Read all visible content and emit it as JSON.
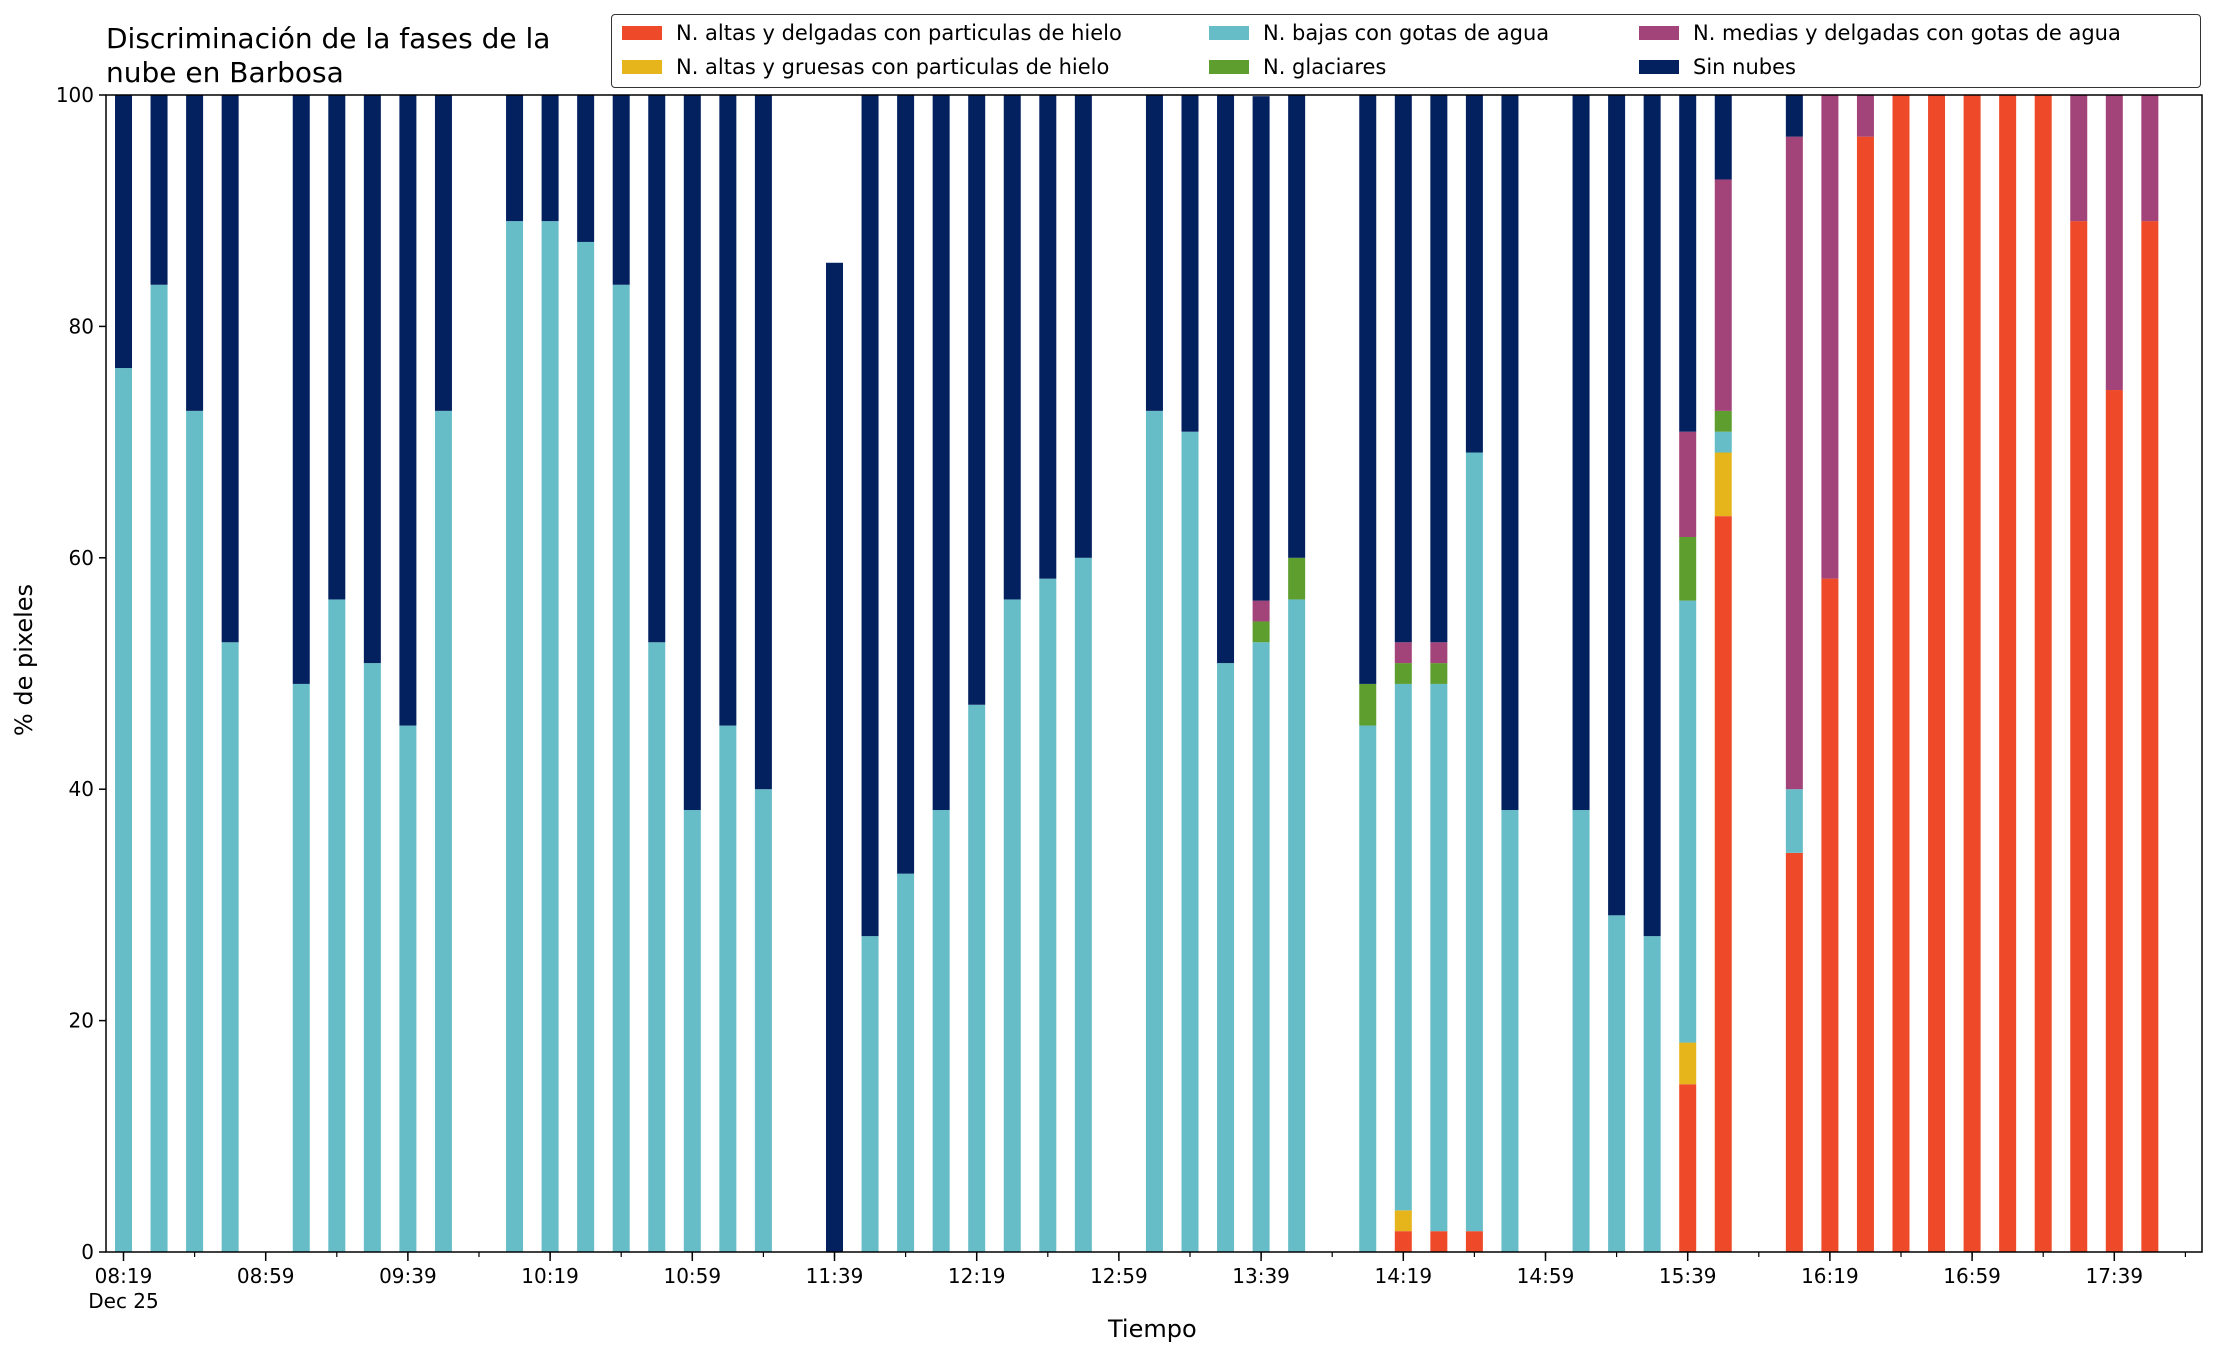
{
  "chart_data": {
    "type": "bar",
    "stacked": true,
    "title": "Discriminación de la fases de la\nnube en Barbosa",
    "xlabel": "Tiempo",
    "ylabel": "% de pixeles",
    "ylim": [
      0,
      100
    ],
    "yticks": [
      0,
      20,
      40,
      60,
      80,
      100
    ],
    "grid": false,
    "legend_position": "top-right",
    "xtick_labels": [
      "08:19",
      "08:59",
      "09:39",
      "10:19",
      "10:59",
      "11:39",
      "12:19",
      "12:59",
      "13:39",
      "14:19",
      "14:59",
      "15:39",
      "16:19",
      "16:59",
      "17:39"
    ],
    "xtick_sublabel": "Dec 25",
    "categories": [
      "08:19",
      "08:29",
      "08:39",
      "08:49",
      "08:59",
      "09:09",
      "09:19",
      "09:29",
      "09:39",
      "09:49",
      "09:59",
      "10:09",
      "10:19",
      "10:29",
      "10:39",
      "10:49",
      "10:59",
      "11:09",
      "11:19",
      "11:29",
      "11:39",
      "11:49",
      "11:59",
      "12:09",
      "12:19",
      "12:29",
      "12:39",
      "12:49",
      "12:59",
      "13:09",
      "13:19",
      "13:29",
      "13:39",
      "13:49",
      "13:59",
      "14:09",
      "14:19",
      "14:29",
      "14:39",
      "14:49",
      "14:59",
      "15:09",
      "15:19",
      "15:29",
      "15:39",
      "15:49",
      "15:59",
      "16:09",
      "16:19",
      "16:29",
      "16:39",
      "16:49",
      "16:59",
      "17:09",
      "17:19",
      "17:29",
      "17:39",
      "17:49"
    ],
    "series": [
      {
        "name": "N. altas y delgadas con particulas de hielo",
        "color": "#EE4A2A",
        "values": [
          0,
          0,
          0,
          0,
          null,
          0,
          0,
          0,
          0,
          0,
          null,
          0,
          0,
          0,
          0,
          0,
          0,
          0,
          0,
          null,
          0,
          0,
          0,
          0,
          0,
          0,
          0,
          0,
          null,
          0,
          0,
          0,
          0,
          0,
          null,
          0,
          1.8,
          1.8,
          1.8,
          0,
          null,
          0,
          0,
          0,
          14.5,
          63.6,
          null,
          34.5,
          58.2,
          96.4,
          100,
          100,
          100,
          100,
          100,
          89.1,
          74.5,
          89.1
        ]
      },
      {
        "name": "N. altas y gruesas con particulas de hielo",
        "color": "#E5B51B",
        "values": [
          0,
          0,
          0,
          0,
          null,
          0,
          0,
          0,
          0,
          0,
          null,
          0,
          0,
          0,
          0,
          0,
          0,
          0,
          0,
          null,
          0,
          0,
          0,
          0,
          0,
          0,
          0,
          0,
          null,
          0,
          0,
          0,
          0,
          0,
          null,
          0,
          1.8,
          0,
          0,
          0,
          null,
          0,
          0,
          0,
          3.6,
          5.5,
          null,
          0,
          0,
          0,
          0,
          0,
          0,
          0,
          0,
          0,
          0,
          0
        ]
      },
      {
        "name": "N. bajas con gotas de agua",
        "color": "#66BDC8",
        "values": [
          76.4,
          83.6,
          72.7,
          52.7,
          null,
          49.1,
          56.4,
          50.9,
          45.5,
          72.7,
          null,
          89.1,
          89.1,
          87.3,
          83.6,
          52.7,
          38.2,
          45.5,
          40.0,
          null,
          0,
          27.3,
          32.7,
          38.2,
          47.3,
          56.4,
          58.2,
          60.0,
          null,
          72.7,
          70.9,
          50.9,
          52.7,
          56.4,
          null,
          45.5,
          45.5,
          47.3,
          67.3,
          38.2,
          null,
          38.2,
          29.1,
          27.3,
          38.2,
          1.8,
          null,
          5.5,
          0,
          0,
          0,
          0,
          0,
          0,
          0,
          0,
          0,
          0
        ]
      },
      {
        "name": "N. glaciares",
        "color": "#5E9E2F",
        "values": [
          0,
          0,
          0,
          0,
          null,
          0,
          0,
          0,
          0,
          0,
          null,
          0,
          0,
          0,
          0,
          0,
          0,
          0,
          0,
          null,
          0,
          0,
          0,
          0,
          0,
          0,
          0,
          0,
          null,
          0,
          0,
          0,
          1.8,
          3.6,
          null,
          3.6,
          1.8,
          1.8,
          0,
          0,
          null,
          0,
          0,
          0,
          5.5,
          1.8,
          null,
          0,
          0,
          0,
          0,
          0,
          0,
          0,
          0,
          0,
          0,
          0
        ]
      },
      {
        "name": "N. medias y delgadas con gotas de agua",
        "color": "#A2437A",
        "values": [
          0,
          0,
          0,
          0,
          null,
          0,
          0,
          0,
          0,
          0,
          null,
          0,
          0,
          0,
          0,
          0,
          0,
          0,
          0,
          null,
          0,
          0,
          0,
          0,
          0,
          0,
          0,
          0,
          null,
          0,
          0,
          0,
          1.8,
          0,
          null,
          0,
          1.8,
          1.8,
          0,
          0,
          null,
          0,
          0,
          0,
          9.1,
          20.0,
          null,
          56.4,
          41.8,
          3.6,
          0,
          0,
          0,
          0,
          0,
          10.9,
          25.5,
          10.9
        ]
      },
      {
        "name": "Sin nubes",
        "color": "#03205F",
        "values": [
          23.6,
          16.4,
          27.3,
          47.3,
          null,
          50.9,
          43.6,
          49.1,
          54.5,
          27.3,
          null,
          10.9,
          10.9,
          12.7,
          16.4,
          47.3,
          61.8,
          54.5,
          60.0,
          null,
          85.5,
          72.7,
          67.3,
          61.8,
          52.7,
          43.6,
          41.8,
          40.0,
          null,
          27.3,
          29.1,
          49.1,
          43.6,
          40.0,
          null,
          50.9,
          47.3,
          47.3,
          30.9,
          61.8,
          null,
          61.8,
          70.9,
          72.7,
          29.1,
          7.3,
          null,
          3.6,
          0,
          0,
          0,
          0,
          0,
          0,
          0,
          0,
          0,
          0
        ]
      }
    ]
  }
}
